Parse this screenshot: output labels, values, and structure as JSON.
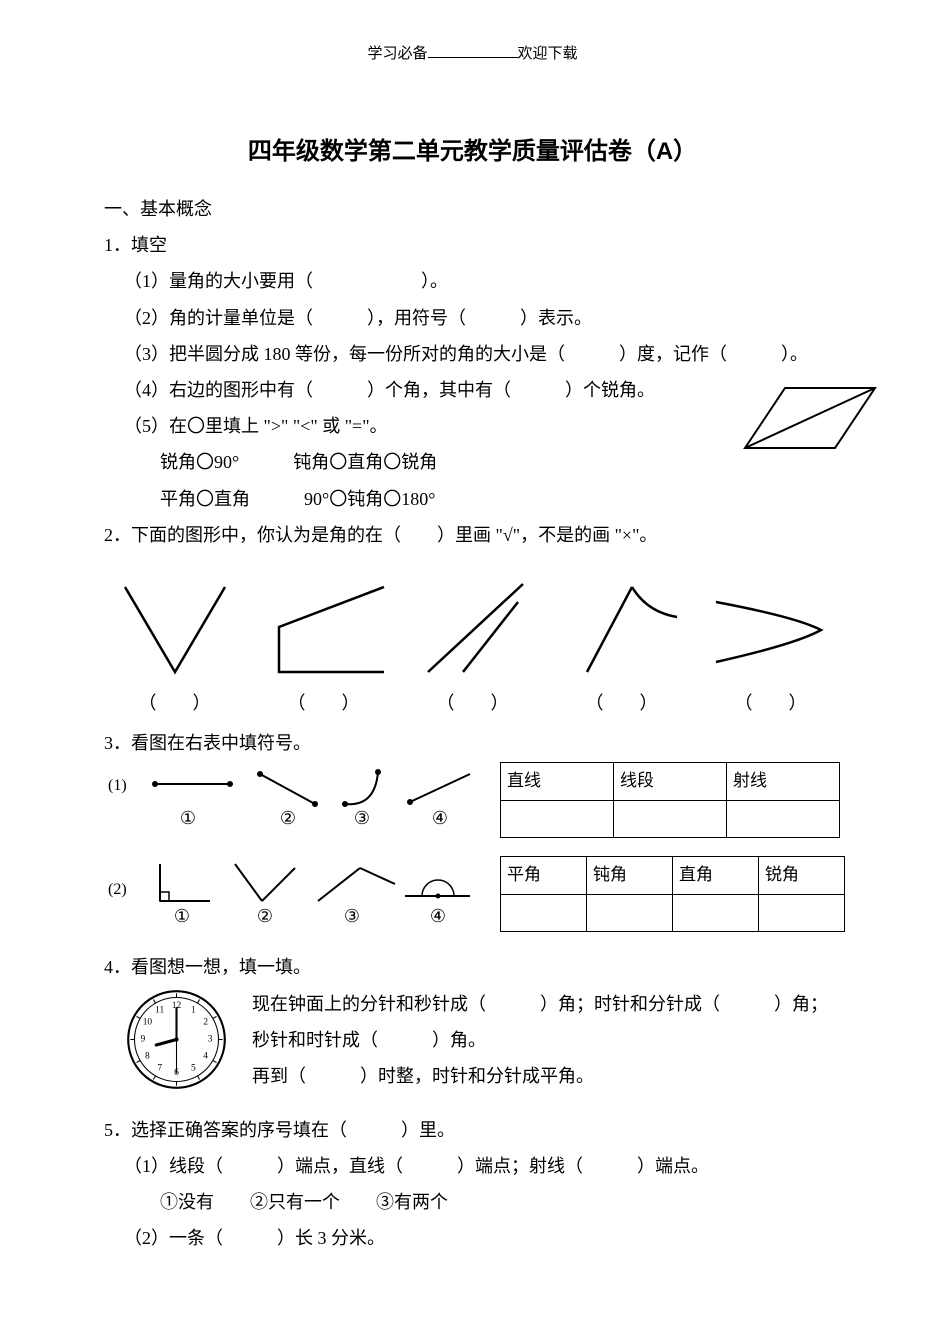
{
  "header": {
    "left": "学习必备",
    "right": "欢迎下载"
  },
  "title": "四年级数学第二单元教学质量评估卷（A）",
  "sec1_heading": "一、基本概念",
  "q1": {
    "label": "1．填空",
    "i1": "（1）量角的大小要用（　　　　　　）。",
    "i2": "（2）角的计量单位是（　　　），用符号（　　　）表示。",
    "i3": "（3）把半圆分成 180 等份，每一份所对的角的大小是（　　　）度，记作（　　　）。",
    "i4": "（4）右边的图形中有（　　　）个角，其中有（　　　）个锐角。",
    "i5a": "（5）在〇里填上 \">\" \"<\" 或 \"=\"。",
    "i5b": "锐角〇90°　　　钝角〇直角〇锐角",
    "i5c": "平角〇直角　　　90°〇钝角〇180°"
  },
  "q2": {
    "label": "2．下面的图形中，你认为是角的在（　　）里画 \"√\"，不是的画 \"×\"。",
    "paren": "（　　）"
  },
  "q3": {
    "label": "3．看图在右表中填符号。",
    "table1": {
      "c1": "直线",
      "c2": "线段",
      "c3": "射线",
      "cw1": 100,
      "cw2": 100,
      "cw3": 100
    },
    "table2": {
      "c1": "平角",
      "c2": "钝角",
      "c3": "直角",
      "c4": "锐角",
      "cw": 80
    },
    "row1_prefix": "(1)",
    "row2_prefix": "(2)",
    "circ1": "①",
    "circ2": "②",
    "circ3": "③",
    "circ4": "④"
  },
  "q4": {
    "label": "4．看图想一想，填一填。",
    "line1": "现在钟面上的分针和秒针成（　　　）角；时针和分针成（　　　）角；",
    "line2": "秒针和时针成（　　　）角。",
    "line3": "再到（　　　）时整，时针和分针成平角。",
    "clock": {
      "numbers": [
        "12",
        "1",
        "2",
        "3",
        "4",
        "5",
        "6",
        "7",
        "8",
        "9",
        "10",
        "11"
      ],
      "hour_angle": 255,
      "minute_angle": 0,
      "second_angle": 180
    }
  },
  "q5": {
    "label": "5．选择正确答案的序号填在（　　　）里。",
    "i1": "（1）线段（　　　）端点，直线（　　　）端点；射线（　　　）端点。",
    "i1opts": "①没有　　②只有一个　　③有两个",
    "i2": "（2）一条（　　　）长 3 分米。"
  },
  "colors": {
    "text": "#000000",
    "bg": "#ffffff",
    "stroke": "#000000"
  }
}
